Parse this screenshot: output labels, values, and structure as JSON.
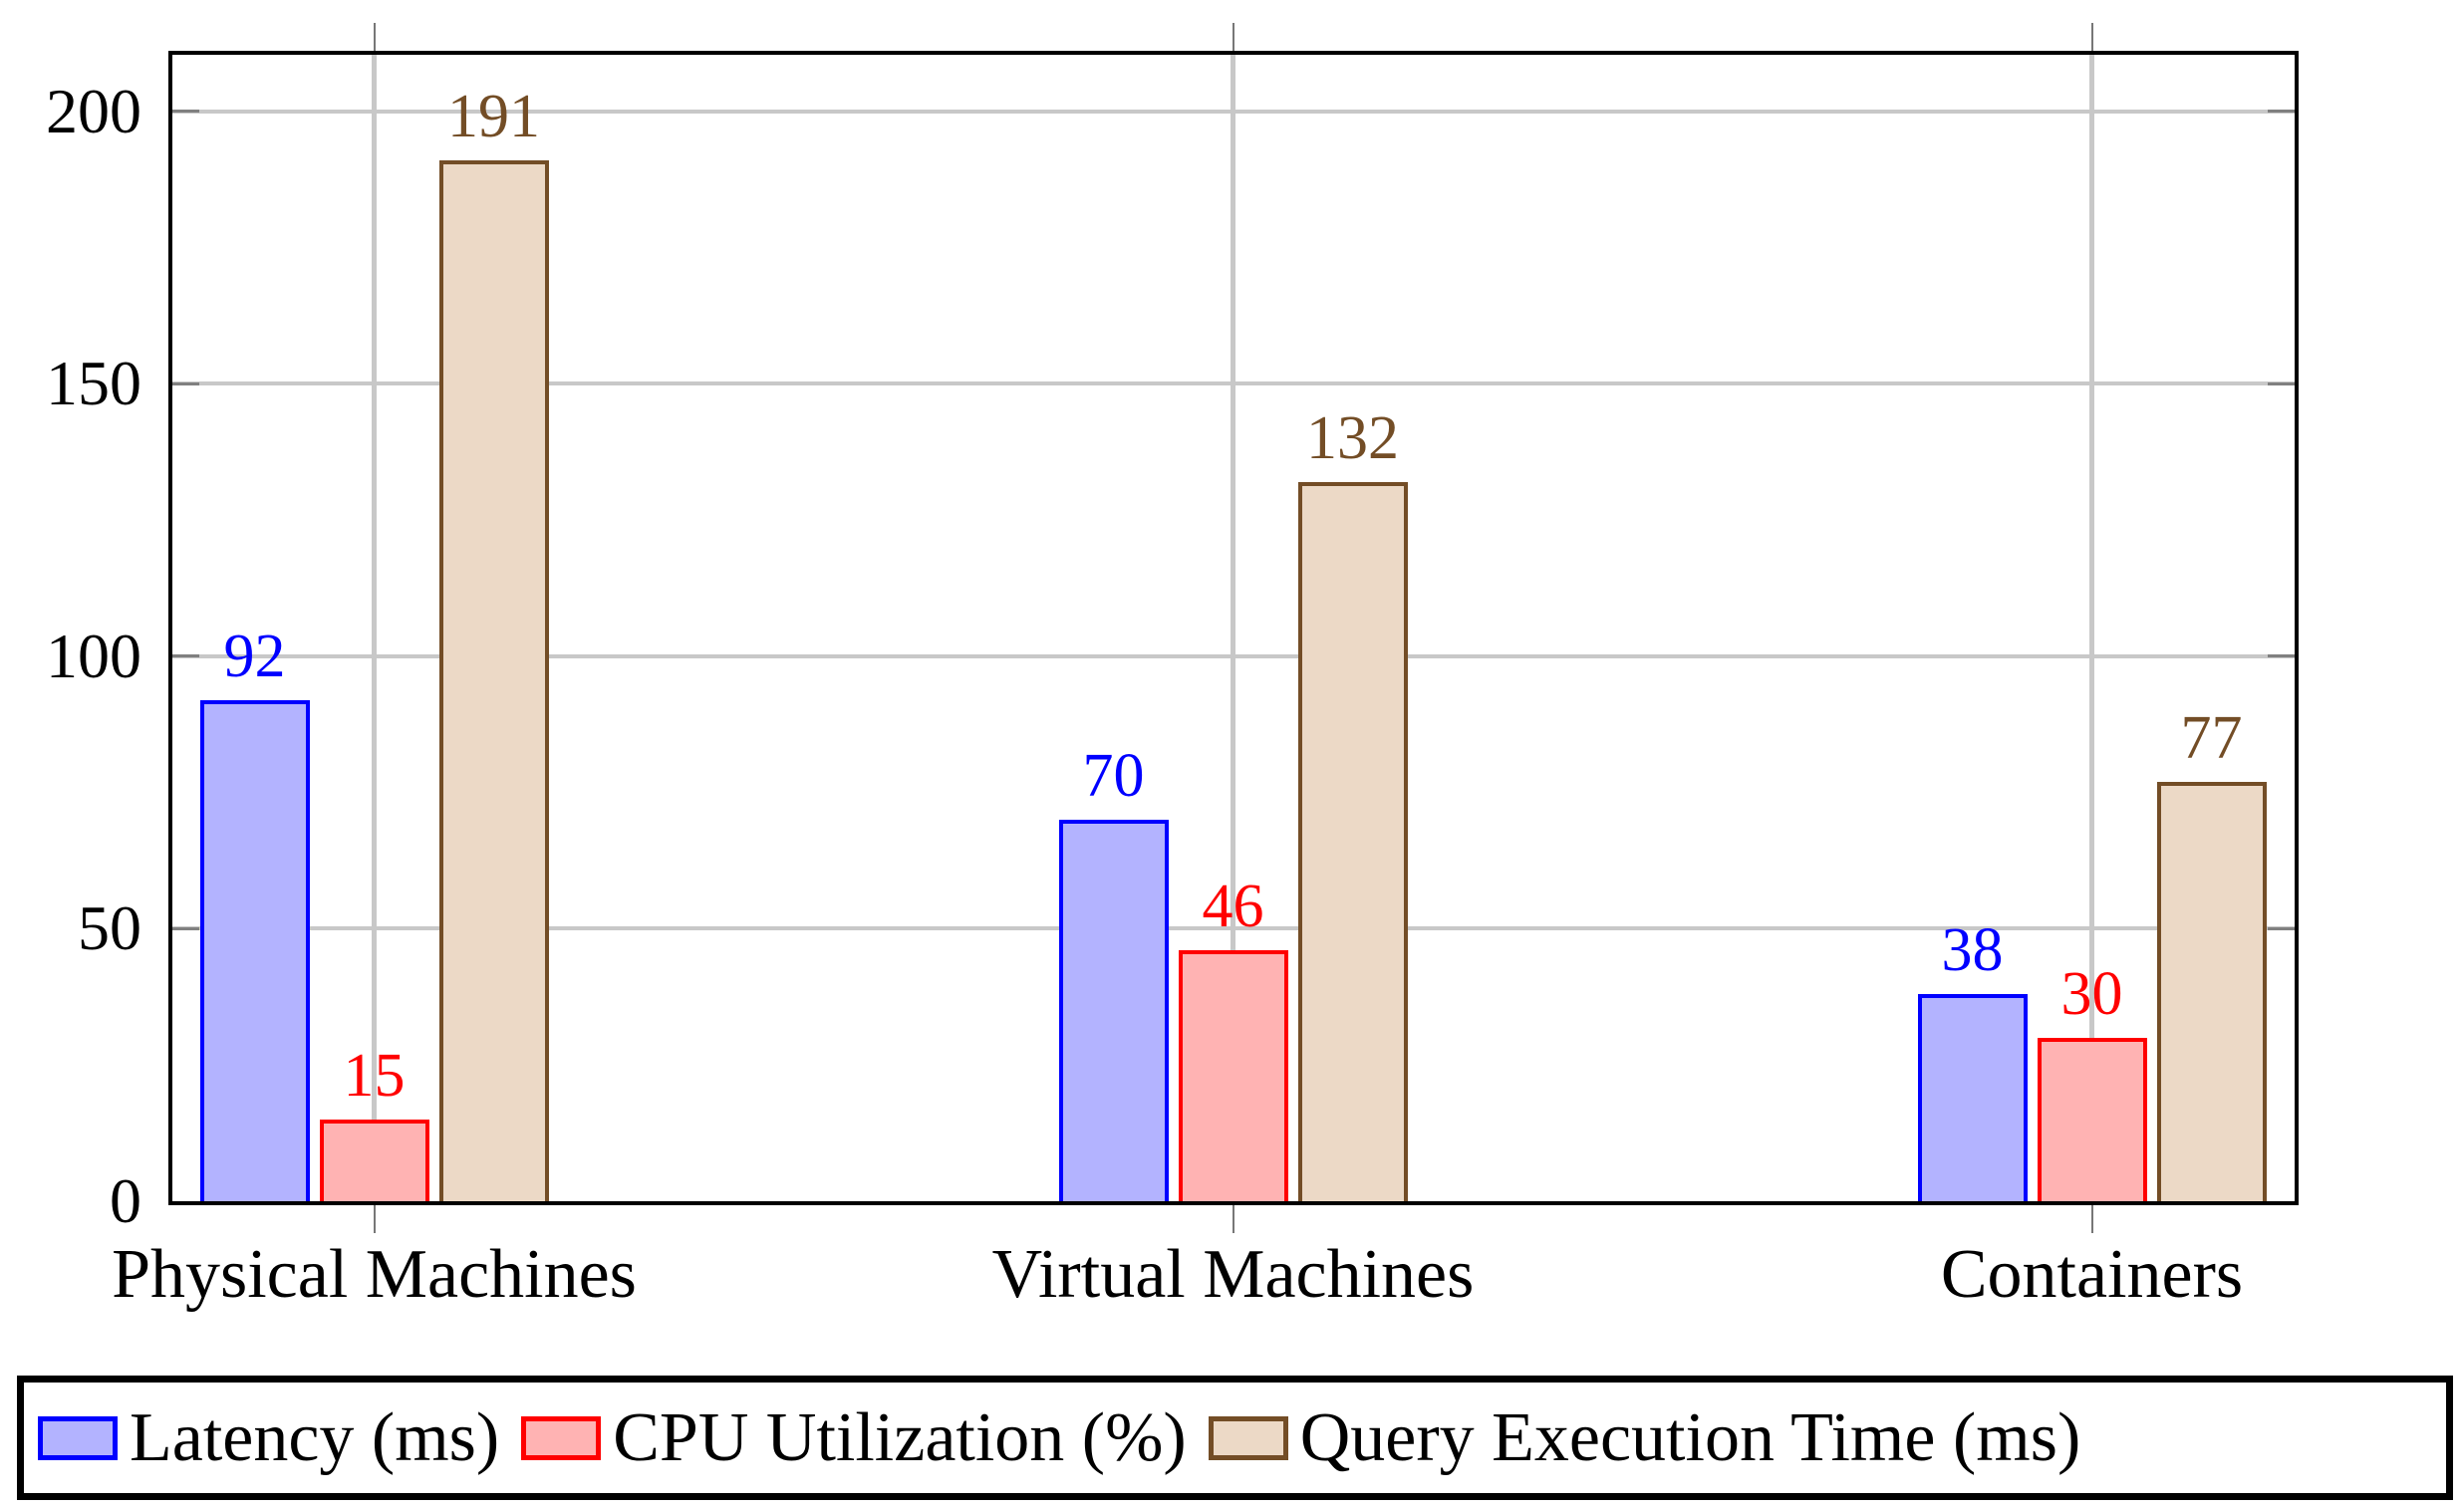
{
  "figure": {
    "background": "#ffffff"
  },
  "chart_data": {
    "type": "bar",
    "title": "",
    "xlabel": "",
    "ylabel": "",
    "categories": [
      "Physical Machines",
      "Virtual Machines",
      "Containers"
    ],
    "series": [
      {
        "name": "Latency (ms)",
        "values": [
          92,
          70,
          38
        ],
        "stroke": "#0000ff",
        "fill": "#b3b3ff"
      },
      {
        "name": "CPU Utilization (%)",
        "values": [
          15,
          46,
          30
        ],
        "stroke": "#ff0000",
        "fill": "#ffb3b3"
      },
      {
        "name": "Query Execution Time (ms)",
        "values": [
          191,
          132,
          77
        ],
        "stroke": "#734d26",
        "fill": "#ecd9c6"
      }
    ],
    "bar_value_labels": [
      [
        "92",
        "15",
        "191"
      ],
      [
        "70",
        "46",
        "132"
      ],
      [
        "38",
        "30",
        "77"
      ]
    ],
    "ylim": [
      0,
      210.4
    ],
    "yticks": [
      0,
      50,
      100,
      150,
      200
    ],
    "ytick_labels": [
      "0",
      "50",
      "100",
      "150",
      "200"
    ],
    "grid": true,
    "legend_position": "bottom-outside",
    "colors": {
      "axis": "#000000",
      "grid": "#c8c8c8",
      "tick": "#777777",
      "legend_border": "#000000",
      "background": "#ffffff"
    }
  }
}
